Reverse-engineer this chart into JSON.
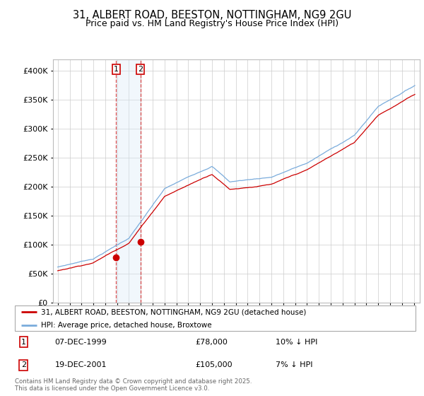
{
  "title": "31, ALBERT ROAD, BEESTON, NOTTINGHAM, NG9 2GU",
  "subtitle": "Price paid vs. HM Land Registry's House Price Index (HPI)",
  "title_fontsize": 10.5,
  "subtitle_fontsize": 9,
  "ylabel_ticks": [
    "£0",
    "£50K",
    "£100K",
    "£150K",
    "£200K",
    "£250K",
    "£300K",
    "£350K",
    "£400K"
  ],
  "ytick_values": [
    0,
    50000,
    100000,
    150000,
    200000,
    250000,
    300000,
    350000,
    400000
  ],
  "ylim": [
    0,
    420000
  ],
  "xlim_start": 1994.6,
  "xlim_end": 2025.5,
  "purchase1_year": 1999.92,
  "purchase1_price": 78000,
  "purchase2_year": 2001.96,
  "purchase2_price": 105000,
  "purchase1_date": "07-DEC-1999",
  "purchase1_amount": "£78,000",
  "purchase1_hpi": "10% ↓ HPI",
  "purchase2_date": "19-DEC-2001",
  "purchase2_amount": "£105,000",
  "purchase2_hpi": "7% ↓ HPI",
  "line_red_color": "#cc0000",
  "line_blue_color": "#7aacdc",
  "shade_color": "#d8eaf8",
  "legend_line1": "31, ALBERT ROAD, BEESTON, NOTTINGHAM, NG9 2GU (detached house)",
  "legend_line2": "HPI: Average price, detached house, Broxtowe",
  "footer": "Contains HM Land Registry data © Crown copyright and database right 2025.\nThis data is licensed under the Open Government Licence v3.0.",
  "background": "#ffffff",
  "grid_color": "#cccccc"
}
